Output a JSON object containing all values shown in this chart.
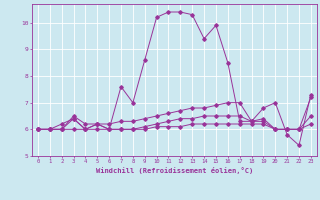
{
  "title": "",
  "xlabel": "Windchill (Refroidissement éolien,°C)",
  "xlim": [
    -0.5,
    23.5
  ],
  "ylim": [
    5,
    10.7
  ],
  "yticks": [
    5,
    6,
    7,
    8,
    9,
    10
  ],
  "xticks": [
    0,
    1,
    2,
    3,
    4,
    5,
    6,
    7,
    8,
    9,
    10,
    11,
    12,
    13,
    14,
    15,
    16,
    17,
    18,
    19,
    20,
    21,
    22,
    23
  ],
  "background_color": "#cce8f0",
  "grid_color": "#ffffff",
  "line_color": "#993399",
  "lines": [
    {
      "x": [
        0,
        1,
        2,
        3,
        4,
        5,
        6,
        7,
        8,
        9,
        10,
        11,
        12,
        13,
        14,
        15,
        16,
        17,
        18,
        19,
        20,
        21,
        22,
        23
      ],
      "y": [
        6.0,
        6.0,
        6.2,
        6.4,
        6.0,
        6.2,
        6.0,
        7.6,
        7.0,
        8.6,
        10.2,
        10.4,
        10.4,
        10.3,
        9.4,
        9.9,
        8.5,
        6.3,
        6.3,
        6.8,
        7.0,
        5.8,
        5.4,
        7.3
      ]
    },
    {
      "x": [
        0,
        1,
        2,
        3,
        4,
        5,
        6,
        7,
        8,
        9,
        10,
        11,
        12,
        13,
        14,
        15,
        16,
        17,
        18,
        19,
        20,
        21,
        22,
        23
      ],
      "y": [
        6.0,
        6.0,
        6.0,
        6.5,
        6.2,
        6.2,
        6.2,
        6.3,
        6.3,
        6.4,
        6.5,
        6.6,
        6.7,
        6.8,
        6.8,
        6.9,
        7.0,
        7.0,
        6.3,
        6.4,
        6.0,
        6.0,
        6.0,
        7.2
      ]
    },
    {
      "x": [
        0,
        1,
        2,
        3,
        4,
        5,
        6,
        7,
        8,
        9,
        10,
        11,
        12,
        13,
        14,
        15,
        16,
        17,
        18,
        19,
        20,
        21,
        22,
        23
      ],
      "y": [
        6.0,
        6.0,
        6.0,
        6.4,
        6.0,
        6.2,
        6.0,
        6.0,
        6.0,
        6.1,
        6.2,
        6.3,
        6.4,
        6.4,
        6.5,
        6.5,
        6.5,
        6.5,
        6.3,
        6.3,
        6.0,
        6.0,
        6.0,
        6.5
      ]
    },
    {
      "x": [
        0,
        1,
        2,
        3,
        4,
        5,
        6,
        7,
        8,
        9,
        10,
        11,
        12,
        13,
        14,
        15,
        16,
        17,
        18,
        19,
        20,
        21,
        22,
        23
      ],
      "y": [
        6.0,
        6.0,
        6.0,
        6.0,
        6.0,
        6.0,
        6.0,
        6.0,
        6.0,
        6.0,
        6.1,
        6.1,
        6.1,
        6.2,
        6.2,
        6.2,
        6.2,
        6.2,
        6.2,
        6.2,
        6.0,
        6.0,
        6.0,
        6.2
      ]
    }
  ]
}
